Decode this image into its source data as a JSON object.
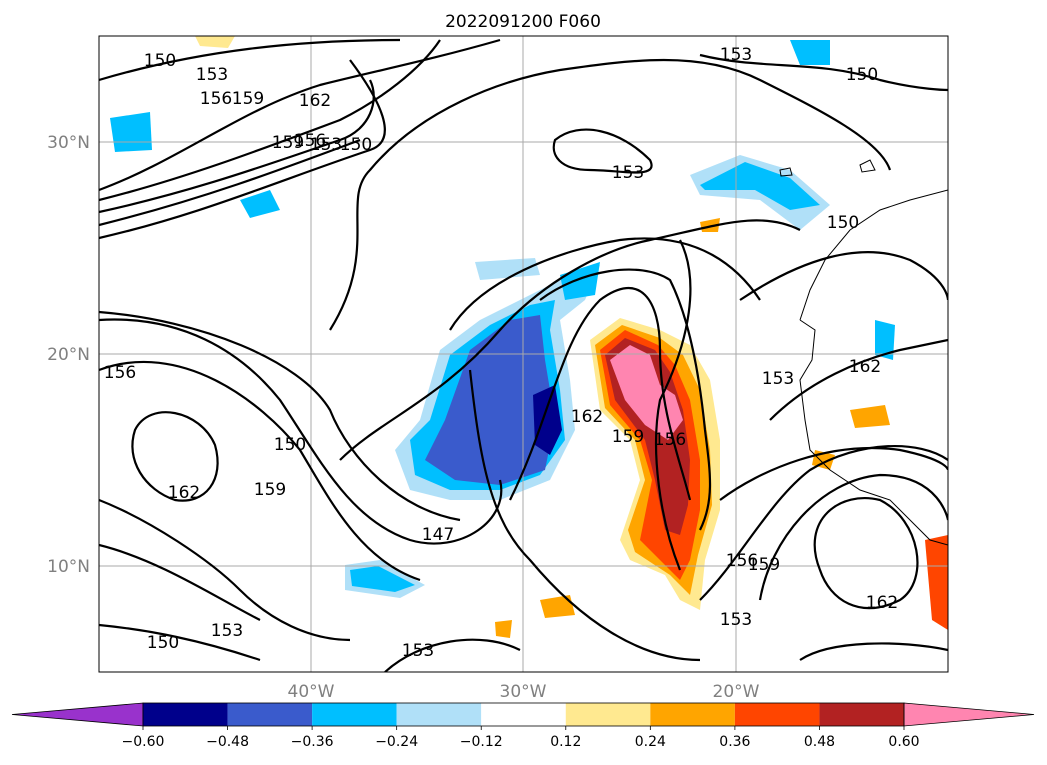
{
  "figure": {
    "title": "2022091200 F060"
  },
  "map": {
    "lon_labels": [
      "40°W",
      "30°W",
      "20°W"
    ],
    "lat_labels": [
      "30°N",
      "20°N",
      "10°N"
    ],
    "contour_labels": [
      "150",
      "153",
      "156",
      "159",
      "162",
      "159",
      "156",
      "153",
      "150",
      "162",
      "153",
      "150",
      "153",
      "150",
      "156",
      "150",
      "159",
      "162",
      "147",
      "162",
      "159",
      "156",
      "153",
      "150",
      "153",
      "153",
      "156",
      "159",
      "162",
      "153"
    ]
  },
  "colorbar": {
    "tick_labels": [
      "−0.60",
      "−0.48",
      "−0.36",
      "−0.24",
      "−0.12",
      "0.12",
      "0.24",
      "0.36",
      "0.48",
      "0.60"
    ],
    "colors": [
      "#9932cc",
      "#00008b",
      "#3a5bcc",
      "#00bfff",
      "#b0e0f8",
      "#ffffff",
      "#ffe990",
      "#ffa500",
      "#ff4500",
      "#b22222",
      "#ff85b0"
    ]
  }
}
